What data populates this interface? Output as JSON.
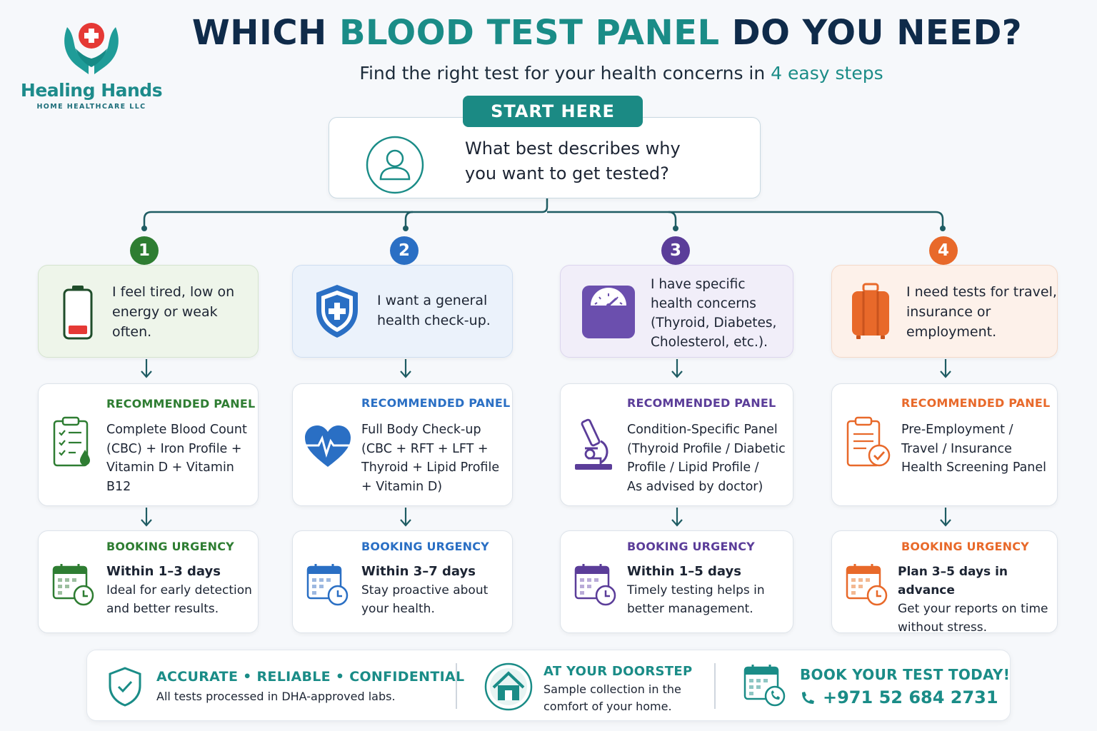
{
  "brand": {
    "name": "Healing Hands",
    "tagline": "HOME HEALTHCARE LLC"
  },
  "header": {
    "title_pre": "WHICH ",
    "title_accent": "BLOOD TEST PANEL",
    "title_post": " DO YOU NEED?",
    "subtitle_pre": "Find the right test for your health concerns in ",
    "subtitle_accent": "4 easy steps"
  },
  "start": {
    "label": "START HERE",
    "question_line1": "What best describes why",
    "question_line2": "you want to get tested?"
  },
  "colors": {
    "teal": "#1a8c87",
    "green": "#2e7d32",
    "blue": "#2a6fc4",
    "purple": "#5b3d99",
    "orange": "#e8692a"
  },
  "paths": [
    {
      "number": "1",
      "color": "#2e7d32",
      "top_bg": "#eef5ea",
      "icon": "battery-low-icon",
      "reason": [
        "I feel tired, low on",
        "energy or weak",
        "often."
      ],
      "panel_heading": "RECOMMENDED PANEL",
      "panel_icon": "clipboard-drop-icon",
      "panel_lines": [
        "Complete Blood Count",
        "(CBC) + Iron Profile +",
        "Vitamin D + Vitamin B12"
      ],
      "urgency_heading": "BOOKING URGENCY",
      "urgency_bold": "Within 1–3 days",
      "urgency_lines": [
        "Ideal for early detection",
        "and better results."
      ]
    },
    {
      "number": "2",
      "color": "#2a6fc4",
      "top_bg": "#ebf2fb",
      "icon": "shield-cross-icon",
      "reason": [
        "I want a general",
        "health check-up."
      ],
      "panel_heading": "RECOMMENDED PANEL",
      "panel_icon": "heartbeat-icon",
      "panel_lines": [
        "Full Body Check-up",
        "(CBC + RFT + LFT +",
        "Thyroid + Lipid Profile",
        "+ Vitamin D)"
      ],
      "urgency_heading": "BOOKING URGENCY",
      "urgency_bold": "Within 3–7 days",
      "urgency_lines": [
        "Stay proactive about",
        "your health."
      ]
    },
    {
      "number": "3",
      "color": "#5b3d99",
      "top_bg": "#f1eef9",
      "icon": "weight-scale-icon",
      "reason": [
        "I have specific",
        "health concerns",
        "(Thyroid, Diabetes,",
        "Cholesterol, etc.)."
      ],
      "panel_heading": "RECOMMENDED PANEL",
      "panel_icon": "microscope-icon",
      "panel_lines": [
        "Condition-Specific Panel",
        "(Thyroid Profile / Diabetic",
        "Profile / Lipid Profile /",
        "As advised by doctor)"
      ],
      "urgency_heading": "BOOKING URGENCY",
      "urgency_bold": "Within 1–5 days",
      "urgency_lines": [
        "Timely testing helps in",
        "better management."
      ]
    },
    {
      "number": "4",
      "color": "#e8692a",
      "top_bg": "#fdf1ea",
      "icon": "suitcase-icon",
      "reason": [
        "I need tests for travel,",
        "insurance or",
        "employment."
      ],
      "panel_heading": "RECOMMENDED PANEL",
      "panel_icon": "clipboard-check-icon",
      "panel_lines": [
        "Pre-Employment /",
        "Travel / Insurance",
        "Health Screening Panel"
      ],
      "urgency_heading": "BOOKING URGENCY",
      "urgency_bold": "Plan 3–5 days in advance",
      "urgency_lines": [
        "Get your reports on time",
        "without stress."
      ]
    }
  ],
  "footer": {
    "trust_heading": "ACCURATE • RELIABLE • CONFIDENTIAL",
    "trust_text": "All tests processed in DHA-approved labs.",
    "doorstep_heading": "AT YOUR DOORSTEP",
    "doorstep_line1": "Sample collection in the",
    "doorstep_line2": "comfort of your home.",
    "book_heading": "BOOK YOUR TEST TODAY!",
    "phone": "+971 52 684 2731"
  }
}
